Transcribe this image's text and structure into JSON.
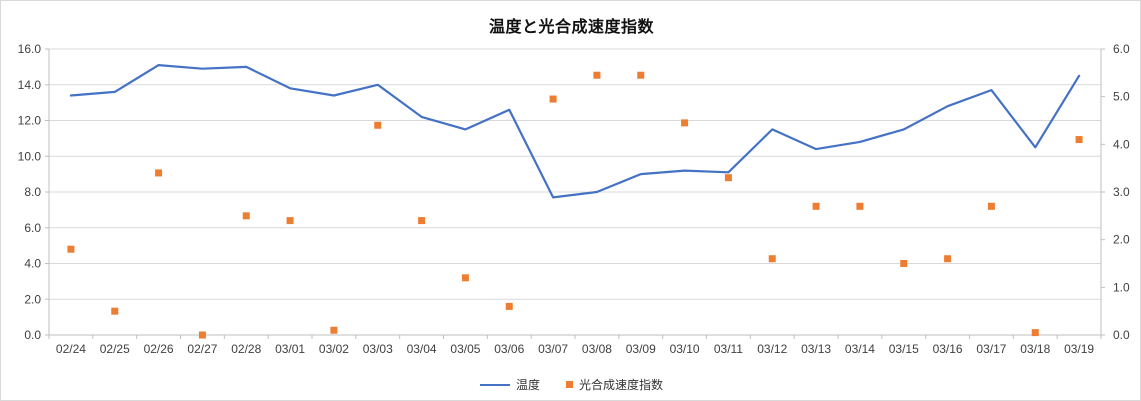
{
  "title": "温度と光合成速度指数",
  "legend": {
    "series1_label": "温度",
    "series2_label": "光合成速度指数"
  },
  "colors": {
    "line": "#4472C4",
    "marker": "#ED7D31",
    "gridline": "#D9D9D9",
    "axis_line": "#BFBFBF",
    "tick_label": "#404040",
    "title_text": "#111111"
  },
  "chart_data": {
    "type": "combo",
    "subtype": "line+scatter",
    "title": "温度と光合成速度指数",
    "categories": [
      "02/24",
      "02/25",
      "02/26",
      "02/27",
      "02/28",
      "03/01",
      "03/02",
      "03/03",
      "03/04",
      "03/05",
      "03/06",
      "03/07",
      "03/08",
      "03/09",
      "03/10",
      "03/11",
      "03/12",
      "03/13",
      "03/14",
      "03/15",
      "03/16",
      "03/17",
      "03/18",
      "03/19"
    ],
    "series": [
      {
        "name": "温度",
        "type": "line",
        "axis": "left",
        "color": "#4472C4",
        "values": [
          13.4,
          13.6,
          15.1,
          14.9,
          15.0,
          13.8,
          13.4,
          14.0,
          12.2,
          11.5,
          12.6,
          7.7,
          8.0,
          9.0,
          9.2,
          9.1,
          11.5,
          10.4,
          10.8,
          11.5,
          12.8,
          13.7,
          10.5,
          14.5
        ]
      },
      {
        "name": "光合成速度指数",
        "type": "scatter",
        "marker": "square",
        "axis": "right",
        "color": "#ED7D31",
        "values": [
          1.8,
          0.5,
          3.4,
          0.0,
          2.5,
          2.4,
          0.1,
          4.4,
          2.4,
          1.2,
          0.6,
          4.95,
          5.45,
          5.45,
          4.45,
          3.3,
          1.6,
          2.7,
          2.7,
          1.5,
          1.6,
          2.7,
          0.05,
          4.1
        ]
      }
    ],
    "left_axis": {
      "label": "",
      "min": 0,
      "max": 16,
      "step": 2,
      "tick_format": "one_decimal"
    },
    "right_axis": {
      "label": "",
      "min": 0,
      "max": 6,
      "step": 1,
      "tick_format": "one_decimal"
    },
    "grid": "horizontal",
    "legend_position": "bottom"
  }
}
